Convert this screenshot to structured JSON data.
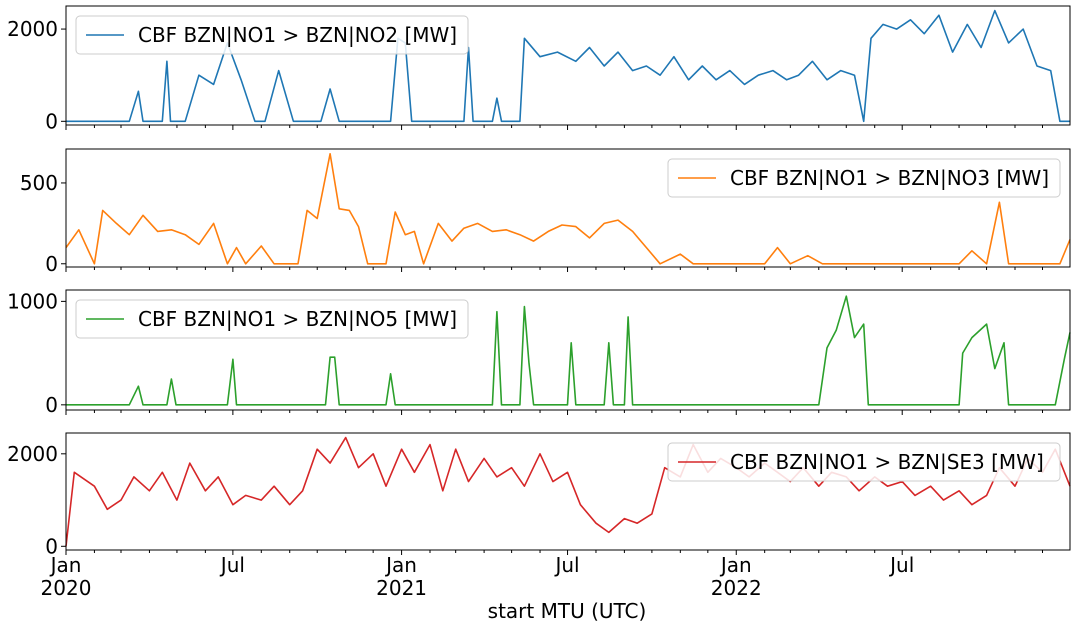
{
  "chart_data": {
    "type": "line",
    "xlabel": "start MTU (UTC)",
    "x_range": [
      "2020-01-01",
      "2022-12-31"
    ],
    "x_tick_labels": [
      {
        "date": "2020-01-01",
        "line1": "Jan",
        "line2": "2020"
      },
      {
        "date": "2020-07-01",
        "line1": "Jul",
        "line2": ""
      },
      {
        "date": "2021-01-01",
        "line1": "Jan",
        "line2": "2021"
      },
      {
        "date": "2021-07-01",
        "line1": "Jul",
        "line2": ""
      },
      {
        "date": "2022-01-01",
        "line1": "Jan",
        "line2": "2022"
      },
      {
        "date": "2022-07-01",
        "line1": "Jul",
        "line2": ""
      }
    ],
    "panels": [
      {
        "series_name": "CBF BZN|NO1 > BZN|NO2 [MW]",
        "color": "#1f77b4",
        "legend_position": "upper-left",
        "ylim": [
          -80,
          2500
        ],
        "yticks": [
          0,
          2000
        ],
        "points": [
          [
            "2020-01-01",
            0
          ],
          [
            "2020-03-10",
            0
          ],
          [
            "2020-03-20",
            650
          ],
          [
            "2020-03-25",
            0
          ],
          [
            "2020-04-15",
            0
          ],
          [
            "2020-04-20",
            1300
          ],
          [
            "2020-04-24",
            0
          ],
          [
            "2020-05-10",
            0
          ],
          [
            "2020-05-25",
            1000
          ],
          [
            "2020-06-10",
            800
          ],
          [
            "2020-06-25",
            1700
          ],
          [
            "2020-07-10",
            900
          ],
          [
            "2020-07-25",
            0
          ],
          [
            "2020-08-05",
            0
          ],
          [
            "2020-08-20",
            1100
          ],
          [
            "2020-09-05",
            0
          ],
          [
            "2020-10-05",
            0
          ],
          [
            "2020-10-15",
            700
          ],
          [
            "2020-10-25",
            0
          ],
          [
            "2020-12-20",
            0
          ],
          [
            "2020-12-28",
            1800
          ],
          [
            "2021-01-05",
            1700
          ],
          [
            "2021-01-12",
            0
          ],
          [
            "2021-03-10",
            0
          ],
          [
            "2021-03-15",
            1600
          ],
          [
            "2021-03-20",
            0
          ],
          [
            "2021-04-10",
            0
          ],
          [
            "2021-04-15",
            500
          ],
          [
            "2021-04-20",
            0
          ],
          [
            "2021-05-10",
            0
          ],
          [
            "2021-05-15",
            1800
          ],
          [
            "2021-06-01",
            1400
          ],
          [
            "2021-06-20",
            1500
          ],
          [
            "2021-07-10",
            1300
          ],
          [
            "2021-07-25",
            1600
          ],
          [
            "2021-08-10",
            1200
          ],
          [
            "2021-08-25",
            1500
          ],
          [
            "2021-09-10",
            1100
          ],
          [
            "2021-09-25",
            1200
          ],
          [
            "2021-10-10",
            1000
          ],
          [
            "2021-10-25",
            1400
          ],
          [
            "2021-11-10",
            900
          ],
          [
            "2021-11-25",
            1200
          ],
          [
            "2021-12-10",
            900
          ],
          [
            "2021-12-25",
            1100
          ],
          [
            "2022-01-10",
            800
          ],
          [
            "2022-01-25",
            1000
          ],
          [
            "2022-02-10",
            1100
          ],
          [
            "2022-02-25",
            900
          ],
          [
            "2022-03-10",
            1000
          ],
          [
            "2022-03-25",
            1300
          ],
          [
            "2022-04-10",
            900
          ],
          [
            "2022-04-25",
            1100
          ],
          [
            "2022-05-10",
            1000
          ],
          [
            "2022-05-20",
            0
          ],
          [
            "2022-05-28",
            1800
          ],
          [
            "2022-06-10",
            2100
          ],
          [
            "2022-06-25",
            2000
          ],
          [
            "2022-07-10",
            2200
          ],
          [
            "2022-07-25",
            1900
          ],
          [
            "2022-08-10",
            2300
          ],
          [
            "2022-08-25",
            1500
          ],
          [
            "2022-09-10",
            2100
          ],
          [
            "2022-09-25",
            1600
          ],
          [
            "2022-10-10",
            2400
          ],
          [
            "2022-10-25",
            1700
          ],
          [
            "2022-11-10",
            2000
          ],
          [
            "2022-11-25",
            1200
          ],
          [
            "2022-12-10",
            1100
          ],
          [
            "2022-12-20",
            0
          ],
          [
            "2022-12-31",
            0
          ]
        ]
      },
      {
        "series_name": "CBF BZN|NO1 > BZN|NO3 [MW]",
        "color": "#ff7f0e",
        "legend_position": "upper-right",
        "ylim": [
          -20,
          710
        ],
        "yticks": [
          0,
          500
        ],
        "points": [
          [
            "2020-01-01",
            100
          ],
          [
            "2020-01-15",
            210
          ],
          [
            "2020-02-01",
            0
          ],
          [
            "2020-02-10",
            330
          ],
          [
            "2020-02-25",
            250
          ],
          [
            "2020-03-10",
            180
          ],
          [
            "2020-03-25",
            300
          ],
          [
            "2020-04-10",
            200
          ],
          [
            "2020-04-25",
            210
          ],
          [
            "2020-05-10",
            180
          ],
          [
            "2020-05-25",
            120
          ],
          [
            "2020-06-10",
            250
          ],
          [
            "2020-06-25",
            0
          ],
          [
            "2020-07-05",
            100
          ],
          [
            "2020-07-15",
            0
          ],
          [
            "2020-08-01",
            110
          ],
          [
            "2020-08-15",
            0
          ],
          [
            "2020-09-10",
            0
          ],
          [
            "2020-09-20",
            330
          ],
          [
            "2020-10-01",
            280
          ],
          [
            "2020-10-15",
            680
          ],
          [
            "2020-10-25",
            340
          ],
          [
            "2020-11-05",
            330
          ],
          [
            "2020-11-15",
            230
          ],
          [
            "2020-11-25",
            0
          ],
          [
            "2020-12-15",
            0
          ],
          [
            "2020-12-25",
            320
          ],
          [
            "2021-01-05",
            180
          ],
          [
            "2021-01-15",
            200
          ],
          [
            "2021-01-25",
            0
          ],
          [
            "2021-02-10",
            250
          ],
          [
            "2021-02-25",
            140
          ],
          [
            "2021-03-10",
            220
          ],
          [
            "2021-03-25",
            250
          ],
          [
            "2021-04-10",
            200
          ],
          [
            "2021-04-25",
            210
          ],
          [
            "2021-05-10",
            180
          ],
          [
            "2021-05-25",
            140
          ],
          [
            "2021-06-10",
            200
          ],
          [
            "2021-06-25",
            240
          ],
          [
            "2021-07-10",
            230
          ],
          [
            "2021-07-25",
            160
          ],
          [
            "2021-08-10",
            250
          ],
          [
            "2021-08-25",
            270
          ],
          [
            "2021-09-10",
            200
          ],
          [
            "2021-09-25",
            100
          ],
          [
            "2021-10-10",
            0
          ],
          [
            "2021-11-01",
            60
          ],
          [
            "2021-11-15",
            0
          ],
          [
            "2022-02-01",
            0
          ],
          [
            "2022-02-15",
            100
          ],
          [
            "2022-03-01",
            0
          ],
          [
            "2022-03-20",
            50
          ],
          [
            "2022-04-05",
            0
          ],
          [
            "2022-09-01",
            0
          ],
          [
            "2022-09-15",
            80
          ],
          [
            "2022-10-01",
            0
          ],
          [
            "2022-10-15",
            380
          ],
          [
            "2022-10-25",
            0
          ],
          [
            "2022-12-20",
            0
          ],
          [
            "2022-12-31",
            150
          ]
        ]
      },
      {
        "series_name": "CBF BZN|NO1 > BZN|NO5 [MW]",
        "color": "#2ca02c",
        "legend_position": "upper-left",
        "ylim": [
          -50,
          1110
        ],
        "yticks": [
          0,
          1000
        ],
        "points": [
          [
            "2020-01-01",
            0
          ],
          [
            "2020-03-10",
            0
          ],
          [
            "2020-03-20",
            180
          ],
          [
            "2020-03-25",
            0
          ],
          [
            "2020-04-20",
            0
          ],
          [
            "2020-04-25",
            250
          ],
          [
            "2020-04-30",
            0
          ],
          [
            "2020-06-25",
            0
          ],
          [
            "2020-07-01",
            440
          ],
          [
            "2020-07-05",
            0
          ],
          [
            "2020-10-10",
            0
          ],
          [
            "2020-10-15",
            460
          ],
          [
            "2020-10-20",
            460
          ],
          [
            "2020-10-25",
            0
          ],
          [
            "2020-12-15",
            0
          ],
          [
            "2020-12-20",
            300
          ],
          [
            "2020-12-25",
            0
          ],
          [
            "2021-04-10",
            0
          ],
          [
            "2021-04-15",
            900
          ],
          [
            "2021-04-20",
            0
          ],
          [
            "2021-05-10",
            0
          ],
          [
            "2021-05-15",
            950
          ],
          [
            "2021-05-20",
            400
          ],
          [
            "2021-05-25",
            0
          ],
          [
            "2021-07-01",
            0
          ],
          [
            "2021-07-05",
            600
          ],
          [
            "2021-07-10",
            0
          ],
          [
            "2021-08-10",
            0
          ],
          [
            "2021-08-15",
            600
          ],
          [
            "2021-08-20",
            0
          ],
          [
            "2021-09-01",
            0
          ],
          [
            "2021-09-05",
            850
          ],
          [
            "2021-09-10",
            0
          ],
          [
            "2022-04-01",
            0
          ],
          [
            "2022-04-10",
            550
          ],
          [
            "2022-04-20",
            720
          ],
          [
            "2022-05-01",
            1050
          ],
          [
            "2022-05-10",
            650
          ],
          [
            "2022-05-20",
            780
          ],
          [
            "2022-05-25",
            0
          ],
          [
            "2022-09-01",
            0
          ],
          [
            "2022-09-05",
            500
          ],
          [
            "2022-09-15",
            650
          ],
          [
            "2022-10-01",
            780
          ],
          [
            "2022-10-10",
            350
          ],
          [
            "2022-10-20",
            600
          ],
          [
            "2022-10-25",
            0
          ],
          [
            "2022-12-15",
            0
          ],
          [
            "2022-12-25",
            450
          ],
          [
            "2022-12-31",
            700
          ]
        ]
      },
      {
        "series_name": "CBF BZN|NO1 > BZN|SE3 [MW]",
        "color": "#d62728",
        "legend_position": "upper-right",
        "ylim": [
          -80,
          2450
        ],
        "yticks": [
          0,
          2000
        ],
        "points": [
          [
            "2020-01-01",
            0
          ],
          [
            "2020-01-10",
            1600
          ],
          [
            "2020-02-01",
            1300
          ],
          [
            "2020-02-15",
            800
          ],
          [
            "2020-03-01",
            1000
          ],
          [
            "2020-03-15",
            1500
          ],
          [
            "2020-04-01",
            1200
          ],
          [
            "2020-04-15",
            1600
          ],
          [
            "2020-05-01",
            1000
          ],
          [
            "2020-05-15",
            1800
          ],
          [
            "2020-06-01",
            1200
          ],
          [
            "2020-06-15",
            1500
          ],
          [
            "2020-07-01",
            900
          ],
          [
            "2020-07-15",
            1100
          ],
          [
            "2020-08-01",
            1000
          ],
          [
            "2020-08-15",
            1300
          ],
          [
            "2020-09-01",
            900
          ],
          [
            "2020-09-15",
            1200
          ],
          [
            "2020-10-01",
            2100
          ],
          [
            "2020-10-15",
            1800
          ],
          [
            "2020-11-01",
            2350
          ],
          [
            "2020-11-15",
            1700
          ],
          [
            "2020-12-01",
            2000
          ],
          [
            "2020-12-15",
            1300
          ],
          [
            "2021-01-01",
            2100
          ],
          [
            "2021-01-15",
            1600
          ],
          [
            "2021-02-01",
            2200
          ],
          [
            "2021-02-15",
            1200
          ],
          [
            "2021-03-01",
            2100
          ],
          [
            "2021-03-15",
            1400
          ],
          [
            "2021-04-01",
            1900
          ],
          [
            "2021-04-15",
            1500
          ],
          [
            "2021-05-01",
            1700
          ],
          [
            "2021-05-15",
            1300
          ],
          [
            "2021-06-01",
            2000
          ],
          [
            "2021-06-15",
            1400
          ],
          [
            "2021-07-01",
            1600
          ],
          [
            "2021-07-15",
            900
          ],
          [
            "2021-08-01",
            500
          ],
          [
            "2021-08-15",
            300
          ],
          [
            "2021-09-01",
            600
          ],
          [
            "2021-09-15",
            500
          ],
          [
            "2021-10-01",
            700
          ],
          [
            "2021-10-15",
            1700
          ],
          [
            "2021-11-01",
            1500
          ],
          [
            "2021-11-15",
            2200
          ],
          [
            "2021-12-01",
            1600
          ],
          [
            "2021-12-15",
            1900
          ],
          [
            "2022-01-01",
            1700
          ],
          [
            "2022-01-15",
            1500
          ],
          [
            "2022-02-01",
            1800
          ],
          [
            "2022-02-15",
            1600
          ],
          [
            "2022-03-01",
            1400
          ],
          [
            "2022-03-15",
            1700
          ],
          [
            "2022-04-01",
            1300
          ],
          [
            "2022-04-15",
            1600
          ],
          [
            "2022-05-01",
            1500
          ],
          [
            "2022-05-15",
            1200
          ],
          [
            "2022-06-01",
            1500
          ],
          [
            "2022-06-15",
            1300
          ],
          [
            "2022-07-01",
            1400
          ],
          [
            "2022-07-15",
            1100
          ],
          [
            "2022-08-01",
            1300
          ],
          [
            "2022-08-15",
            1000
          ],
          [
            "2022-09-01",
            1200
          ],
          [
            "2022-09-15",
            900
          ],
          [
            "2022-10-01",
            1100
          ],
          [
            "2022-10-15",
            1700
          ],
          [
            "2022-11-01",
            1300
          ],
          [
            "2022-11-15",
            1900
          ],
          [
            "2022-12-01",
            1600
          ],
          [
            "2022-12-15",
            2100
          ],
          [
            "2022-12-31",
            1300
          ]
        ]
      }
    ]
  }
}
